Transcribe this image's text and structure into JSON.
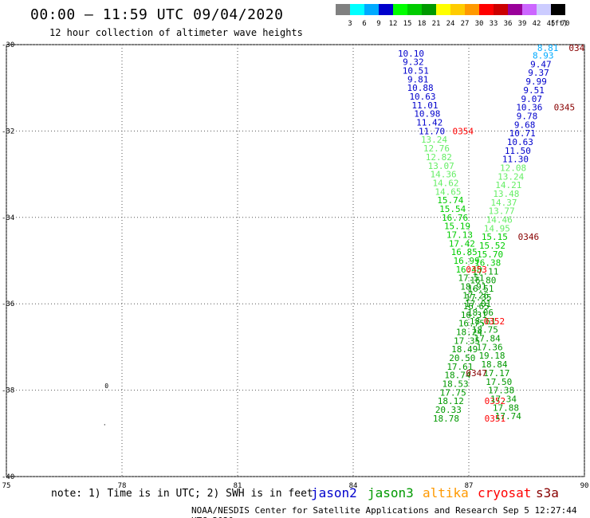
{
  "header": {
    "title": "00:00 – 11:59 UTC 09/04/2020",
    "subtitle": "12 hour collection of altimeter wave heights"
  },
  "legend": {
    "unit": "(ft)",
    "entries": [
      {
        "label": "3",
        "color": "#808080"
      },
      {
        "label": "6",
        "color": "#00ffff"
      },
      {
        "label": "9",
        "color": "#00aaff"
      },
      {
        "label": "12",
        "color": "#0000cc"
      },
      {
        "label": "15",
        "color": "#00ff00"
      },
      {
        "label": "18",
        "color": "#00cc00"
      },
      {
        "label": "21",
        "color": "#009900"
      },
      {
        "label": "24",
        "color": "#ffff00"
      },
      {
        "label": "27",
        "color": "#ffcc00"
      },
      {
        "label": "30",
        "color": "#ff9900"
      },
      {
        "label": "33",
        "color": "#ff0000"
      },
      {
        "label": "36",
        "color": "#cc0000"
      },
      {
        "label": "39",
        "color": "#990099"
      },
      {
        "label": "42",
        "color": "#cc66ff"
      },
      {
        "label": "45",
        "color": "#ccccff"
      },
      {
        "label": "70",
        "color": "#000000"
      }
    ]
  },
  "footer": {
    "note": "note: 1) Time is in UTC; 2) SWH is in feet",
    "credit": "NOAA/NESDIS Center for Satellite Applications and Research   Sep  5 12:27:44 UTC 2020",
    "satellites": [
      {
        "name": "jason2",
        "color": "#0000cc"
      },
      {
        "name": "jason3",
        "color": "#009900"
      },
      {
        "name": "altika",
        "color": "#ff9900"
      },
      {
        "name": "cryosat",
        "color": "#ff0000"
      },
      {
        "name": "s3a",
        "color": "#880000"
      }
    ]
  },
  "chart_data": {
    "type": "scatter",
    "xlim": [
      75,
      90
    ],
    "ylim": [
      -40,
      -30
    ],
    "x_ticks": [
      75,
      78,
      81,
      84,
      87,
      90
    ],
    "y_ticks": [
      -30,
      -32,
      -34,
      -36,
      -38,
      -40
    ],
    "grid": true,
    "labels": [
      {
        "x": 89.05,
        "y": -30.07,
        "t": "8.81",
        "c": "#00aaff"
      },
      {
        "x": 89.8,
        "y": -30.07,
        "t": "034",
        "c": "#880000"
      },
      {
        "x": 88.93,
        "y": -30.25,
        "t": "8.93",
        "c": "#00aaff"
      },
      {
        "x": 88.87,
        "y": -30.45,
        "t": "9.47",
        "c": "#0000cc"
      },
      {
        "x": 88.81,
        "y": -30.65,
        "t": "9.37",
        "c": "#0000cc"
      },
      {
        "x": 88.75,
        "y": -30.85,
        "t": "9.99",
        "c": "#0000cc"
      },
      {
        "x": 88.69,
        "y": -31.05,
        "t": "9.51",
        "c": "#0000cc"
      },
      {
        "x": 88.63,
        "y": -31.25,
        "t": "9.07",
        "c": "#0000cc"
      },
      {
        "x": 88.57,
        "y": -31.45,
        "t": "10.36",
        "c": "#0000cc"
      },
      {
        "x": 89.48,
        "y": -31.45,
        "t": "0345",
        "c": "#880000"
      },
      {
        "x": 88.51,
        "y": -31.65,
        "t": "9.78",
        "c": "#0000cc"
      },
      {
        "x": 88.45,
        "y": -31.85,
        "t": "9.68",
        "c": "#0000cc"
      },
      {
        "x": 88.39,
        "y": -32.05,
        "t": "10.71",
        "c": "#0000cc"
      },
      {
        "x": 88.33,
        "y": -32.25,
        "t": "10.63",
        "c": "#0000cc"
      },
      {
        "x": 88.27,
        "y": -32.45,
        "t": "11.50",
        "c": "#0000cc"
      },
      {
        "x": 88.21,
        "y": -32.65,
        "t": "11.30",
        "c": "#0000cc"
      },
      {
        "x": 88.15,
        "y": -32.85,
        "t": "12.08",
        "c": "#66ee66"
      },
      {
        "x": 88.09,
        "y": -33.05,
        "t": "13.24",
        "c": "#66ee66"
      },
      {
        "x": 88.03,
        "y": -33.25,
        "t": "14.21",
        "c": "#66ee66"
      },
      {
        "x": 87.97,
        "y": -33.45,
        "t": "13.48",
        "c": "#66ee66"
      },
      {
        "x": 87.91,
        "y": -33.65,
        "t": "14.37",
        "c": "#66ee66"
      },
      {
        "x": 87.85,
        "y": -33.85,
        "t": "13.77",
        "c": "#66ee66"
      },
      {
        "x": 87.79,
        "y": -34.05,
        "t": "14.46",
        "c": "#66ee66"
      },
      {
        "x": 87.73,
        "y": -34.25,
        "t": "14.95",
        "c": "#66ee66"
      },
      {
        "x": 87.67,
        "y": -34.45,
        "t": "15.15",
        "c": "#00cc00"
      },
      {
        "x": 88.55,
        "y": -34.45,
        "t": "0346",
        "c": "#880000"
      },
      {
        "x": 87.61,
        "y": -34.65,
        "t": "15.52",
        "c": "#00cc00"
      },
      {
        "x": 87.55,
        "y": -34.85,
        "t": "15.70",
        "c": "#00cc00"
      },
      {
        "x": 87.49,
        "y": -35.05,
        "t": "16.38",
        "c": "#00cc00"
      },
      {
        "x": 87.43,
        "y": -35.25,
        "t": "17.11",
        "c": "#009900"
      },
      {
        "x": 87.37,
        "y": -35.45,
        "t": "16.80",
        "c": "#009900"
      },
      {
        "x": 87.31,
        "y": -35.65,
        "t": "16.51",
        "c": "#009900"
      },
      {
        "x": 87.25,
        "y": -35.85,
        "t": "17.35",
        "c": "#009900"
      },
      {
        "x": 87.19,
        "y": -36.05,
        "t": "16.65",
        "c": "#009900"
      },
      {
        "x": 87.13,
        "y": -36.25,
        "t": "16.31",
        "c": "#009900"
      },
      {
        "x": 87.07,
        "y": -36.45,
        "t": "16.75",
        "c": "#009900"
      },
      {
        "x": 87.01,
        "y": -36.65,
        "t": "18.24",
        "c": "#009900"
      },
      {
        "x": 86.95,
        "y": -36.85,
        "t": "17.35",
        "c": "#009900"
      },
      {
        "x": 86.89,
        "y": -37.05,
        "t": "18.49",
        "c": "#009900"
      },
      {
        "x": 86.83,
        "y": -37.25,
        "t": "20.50",
        "c": "#009900"
      },
      {
        "x": 86.77,
        "y": -37.45,
        "t": "17.61",
        "c": "#009900"
      },
      {
        "x": 86.71,
        "y": -37.65,
        "t": "18.74",
        "c": "#009900"
      },
      {
        "x": 86.65,
        "y": -37.85,
        "t": "18.53",
        "c": "#009900"
      },
      {
        "x": 86.59,
        "y": -38.05,
        "t": "17.75",
        "c": "#009900"
      },
      {
        "x": 86.53,
        "y": -38.25,
        "t": "18.12",
        "c": "#009900"
      },
      {
        "x": 87.68,
        "y": -38.25,
        "t": "0352",
        "c": "#ff0000"
      },
      {
        "x": 86.47,
        "y": -38.45,
        "t": "20.33",
        "c": "#009900"
      },
      {
        "x": 86.41,
        "y": -38.65,
        "t": "18.78",
        "c": "#009900"
      },
      {
        "x": 87.68,
        "y": -38.65,
        "t": "0351",
        "c": "#ff0000"
      },
      {
        "x": 85.5,
        "y": -30.2,
        "t": "10.10",
        "c": "#0000cc"
      },
      {
        "x": 85.56,
        "y": -30.4,
        "t": "9.32",
        "c": "#0000cc"
      },
      {
        "x": 85.62,
        "y": -30.6,
        "t": "10.51",
        "c": "#0000cc"
      },
      {
        "x": 85.68,
        "y": -30.8,
        "t": "9.81",
        "c": "#0000cc"
      },
      {
        "x": 85.74,
        "y": -31.0,
        "t": "10.88",
        "c": "#0000cc"
      },
      {
        "x": 85.8,
        "y": -31.2,
        "t": "10.63",
        "c": "#0000cc"
      },
      {
        "x": 85.86,
        "y": -31.4,
        "t": "11.01",
        "c": "#0000cc"
      },
      {
        "x": 85.92,
        "y": -31.6,
        "t": "10.98",
        "c": "#0000cc"
      },
      {
        "x": 85.98,
        "y": -31.8,
        "t": "11.42",
        "c": "#0000cc"
      },
      {
        "x": 86.04,
        "y": -32.0,
        "t": "11.70",
        "c": "#0000cc"
      },
      {
        "x": 86.85,
        "y": -32.0,
        "t": "0354",
        "c": "#ff0000"
      },
      {
        "x": 86.1,
        "y": -32.2,
        "t": "13.24",
        "c": "#66ee66"
      },
      {
        "x": 86.16,
        "y": -32.4,
        "t": "12.76",
        "c": "#66ee66"
      },
      {
        "x": 86.22,
        "y": -32.6,
        "t": "12.82",
        "c": "#66ee66"
      },
      {
        "x": 86.28,
        "y": -32.8,
        "t": "13.07",
        "c": "#66ee66"
      },
      {
        "x": 86.34,
        "y": -33.0,
        "t": "14.36",
        "c": "#66ee66"
      },
      {
        "x": 86.4,
        "y": -33.2,
        "t": "14.62",
        "c": "#66ee66"
      },
      {
        "x": 86.46,
        "y": -33.4,
        "t": "14.65",
        "c": "#66ee66"
      },
      {
        "x": 86.52,
        "y": -33.6,
        "t": "15.74",
        "c": "#00cc00"
      },
      {
        "x": 86.58,
        "y": -33.8,
        "t": "15.54",
        "c": "#00cc00"
      },
      {
        "x": 86.64,
        "y": -34.0,
        "t": "16.76",
        "c": "#00cc00"
      },
      {
        "x": 86.7,
        "y": -34.2,
        "t": "15.19",
        "c": "#00cc00"
      },
      {
        "x": 86.76,
        "y": -34.4,
        "t": "17.13",
        "c": "#00cc00"
      },
      {
        "x": 86.82,
        "y": -34.6,
        "t": "17.42",
        "c": "#00cc00"
      },
      {
        "x": 86.88,
        "y": -34.8,
        "t": "16.85",
        "c": "#00cc00"
      },
      {
        "x": 86.94,
        "y": -35.0,
        "t": "16.99",
        "c": "#00cc00"
      },
      {
        "x": 87.0,
        "y": -35.2,
        "t": "16.48",
        "c": "#00cc00"
      },
      {
        "x": 87.2,
        "y": -35.2,
        "t": "0353",
        "c": "#ff0000"
      },
      {
        "x": 87.06,
        "y": -35.4,
        "t": "17.51",
        "c": "#009900"
      },
      {
        "x": 87.12,
        "y": -35.6,
        "t": "18.91",
        "c": "#009900"
      },
      {
        "x": 87.18,
        "y": -35.8,
        "t": "17.26",
        "c": "#009900"
      },
      {
        "x": 87.24,
        "y": -36.0,
        "t": "17.01",
        "c": "#009900"
      },
      {
        "x": 87.3,
        "y": -36.2,
        "t": "18.06",
        "c": "#009900"
      },
      {
        "x": 87.36,
        "y": -36.4,
        "t": "18.61",
        "c": "#009900"
      },
      {
        "x": 87.66,
        "y": -36.4,
        "t": "0352",
        "c": "#ff0000"
      },
      {
        "x": 87.42,
        "y": -36.6,
        "t": "18.75",
        "c": "#009900"
      },
      {
        "x": 87.48,
        "y": -36.8,
        "t": "17.84",
        "c": "#009900"
      },
      {
        "x": 87.54,
        "y": -37.0,
        "t": "17.36",
        "c": "#009900"
      },
      {
        "x": 87.6,
        "y": -37.2,
        "t": "19.18",
        "c": "#009900"
      },
      {
        "x": 87.66,
        "y": -37.4,
        "t": "18.84",
        "c": "#009900"
      },
      {
        "x": 87.72,
        "y": -37.6,
        "t": "17.17",
        "c": "#009900"
      },
      {
        "x": 87.2,
        "y": -37.6,
        "t": "0347",
        "c": "#880000"
      },
      {
        "x": 87.78,
        "y": -37.8,
        "t": "17.50",
        "c": "#009900"
      },
      {
        "x": 87.84,
        "y": -38.0,
        "t": "17.38",
        "c": "#009900"
      },
      {
        "x": 87.9,
        "y": -38.2,
        "t": "17.34",
        "c": "#009900"
      },
      {
        "x": 87.96,
        "y": -38.4,
        "t": "17.88",
        "c": "#009900"
      },
      {
        "x": 88.02,
        "y": -38.6,
        "t": "17.74",
        "c": "#009900"
      }
    ],
    "markers": [
      {
        "x": 77.6,
        "y": -37.9,
        "t": "0"
      },
      {
        "x": 77.55,
        "y": -38.75,
        "t": "."
      }
    ]
  }
}
